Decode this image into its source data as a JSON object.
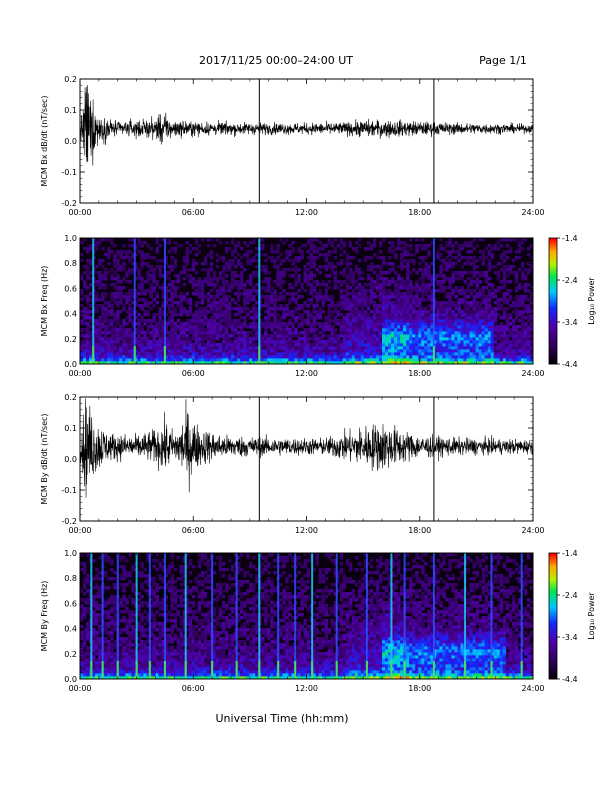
{
  "page": {
    "title": "2017/11/25  00:00–24:00 UT",
    "page_label": "Page 1/1",
    "xaxis_label": "Universal Time (hh:mm)"
  },
  "chart_data": [
    {
      "type": "line",
      "id": "bx-timeseries",
      "ylabel": "MCM Bx dB/dt (nT/sec)",
      "xlim": [
        0,
        24
      ],
      "ylim": [
        -0.2,
        0.2
      ],
      "xticks": [
        "00:00",
        "06:00",
        "12:00",
        "18:00",
        "24:00"
      ],
      "yticks": [
        "-0.2",
        "-0.1",
        "0.0",
        "0.1",
        "0.2"
      ],
      "ytick_values": [
        -0.2,
        -0.1,
        0.0,
        0.1,
        0.2
      ],
      "baseline": 0.04,
      "markers_hours": [
        9.5,
        18.75
      ],
      "envelope": [
        {
          "x": 0.0,
          "amp": 0.03
        },
        {
          "x": 0.1,
          "amp": 0.05
        },
        {
          "x": 0.3,
          "amp": 0.19
        },
        {
          "x": 0.6,
          "amp": 0.12
        },
        {
          "x": 1.0,
          "amp": 0.05
        },
        {
          "x": 2.0,
          "amp": 0.025
        },
        {
          "x": 3.0,
          "amp": 0.03
        },
        {
          "x": 4.0,
          "amp": 0.035
        },
        {
          "x": 4.2,
          "amp": 0.06
        },
        {
          "x": 5.0,
          "amp": 0.03
        },
        {
          "x": 6.0,
          "amp": 0.025
        },
        {
          "x": 8.0,
          "amp": 0.022
        },
        {
          "x": 10.0,
          "amp": 0.02
        },
        {
          "x": 12.0,
          "amp": 0.02
        },
        {
          "x": 14.0,
          "amp": 0.022
        },
        {
          "x": 15.0,
          "amp": 0.03
        },
        {
          "x": 16.5,
          "amp": 0.03
        },
        {
          "x": 18.0,
          "amp": 0.025
        },
        {
          "x": 20.0,
          "amp": 0.02
        },
        {
          "x": 24.0,
          "amp": 0.015
        }
      ]
    },
    {
      "type": "heatmap",
      "id": "bx-spectrogram",
      "ylabel": "MCM Bx Freq (Hz)",
      "xlim": [
        0,
        24
      ],
      "ylim": [
        0,
        1.0
      ],
      "xticks": [
        "00:00",
        "06:00",
        "12:00",
        "18:00",
        "24:00"
      ],
      "yticks": [
        "0.0",
        "0.2",
        "0.4",
        "0.6",
        "0.8",
        "1.0"
      ],
      "ytick_values": [
        0.0,
        0.2,
        0.4,
        0.6,
        0.8,
        1.0
      ],
      "colorbar": {
        "label": "Log₁₀ Power",
        "range": [
          -4.4,
          -1.4
        ],
        "ticks": [
          "-1.4",
          "-2.4",
          "-3.4",
          "-4.4"
        ],
        "tick_values": [
          -1.4,
          -2.4,
          -3.4,
          -4.4
        ]
      },
      "bright_lines_hours": [
        0.7,
        2.9,
        4.5,
        9.5,
        18.75
      ],
      "activity_region": {
        "x_start": 16.0,
        "x_end": 22.0,
        "f_peak": 0.22
      }
    },
    {
      "type": "line",
      "id": "by-timeseries",
      "ylabel": "MCM By dB/dt (nT/sec)",
      "xlim": [
        0,
        24
      ],
      "ylim": [
        -0.2,
        0.2
      ],
      "xticks": [
        "00:00",
        "06:00",
        "12:00",
        "18:00",
        "24:00"
      ],
      "yticks": [
        "-0.2",
        "-0.1",
        "0.0",
        "0.1",
        "0.2"
      ],
      "ytick_values": [
        -0.2,
        -0.1,
        0.0,
        0.1,
        0.2
      ],
      "baseline": 0.04,
      "markers_hours": [
        9.5,
        18.75
      ],
      "envelope": [
        {
          "x": 0.0,
          "amp": 0.04
        },
        {
          "x": 0.3,
          "amp": 0.17
        },
        {
          "x": 0.8,
          "amp": 0.1
        },
        {
          "x": 1.5,
          "amp": 0.05
        },
        {
          "x": 3.0,
          "amp": 0.04
        },
        {
          "x": 4.0,
          "amp": 0.06
        },
        {
          "x": 4.5,
          "amp": 0.09
        },
        {
          "x": 5.0,
          "amp": 0.05
        },
        {
          "x": 5.7,
          "amp": 0.13
        },
        {
          "x": 6.3,
          "amp": 0.07
        },
        {
          "x": 7.5,
          "amp": 0.04
        },
        {
          "x": 9.0,
          "amp": 0.035
        },
        {
          "x": 11.0,
          "amp": 0.03
        },
        {
          "x": 13.0,
          "amp": 0.03
        },
        {
          "x": 14.5,
          "amp": 0.06
        },
        {
          "x": 16.0,
          "amp": 0.09
        },
        {
          "x": 17.0,
          "amp": 0.06
        },
        {
          "x": 18.0,
          "amp": 0.04
        },
        {
          "x": 20.0,
          "amp": 0.03
        },
        {
          "x": 24.0,
          "amp": 0.025
        }
      ]
    },
    {
      "type": "heatmap",
      "id": "by-spectrogram",
      "ylabel": "MCM By Freq (Hz)",
      "xlim": [
        0,
        24
      ],
      "ylim": [
        0,
        1.0
      ],
      "xticks": [
        "00:00",
        "06:00",
        "12:00",
        "18:00",
        "24:00"
      ],
      "yticks": [
        "0.0",
        "0.2",
        "0.4",
        "0.6",
        "0.8",
        "1.0"
      ],
      "ytick_values": [
        0.0,
        0.2,
        0.4,
        0.6,
        0.8,
        1.0
      ],
      "colorbar": {
        "label": "Log₁₀ Power",
        "range": [
          -4.4,
          -1.4
        ],
        "ticks": [
          "-1.4",
          "-2.4",
          "-3.4",
          "-4.4"
        ],
        "tick_values": [
          -1.4,
          -2.4,
          -3.4,
          -4.4
        ]
      },
      "bright_lines_hours": [
        0.6,
        1.2,
        2.0,
        3.0,
        3.7,
        4.5,
        5.6,
        7.0,
        8.3,
        9.5,
        10.5,
        11.4,
        12.3,
        13.6,
        15.2,
        16.5,
        17.2,
        18.75,
        20.4,
        21.8,
        23.4
      ],
      "activity_region": {
        "x_start": 16.0,
        "x_end": 22.5,
        "f_peak": 0.22
      }
    }
  ]
}
